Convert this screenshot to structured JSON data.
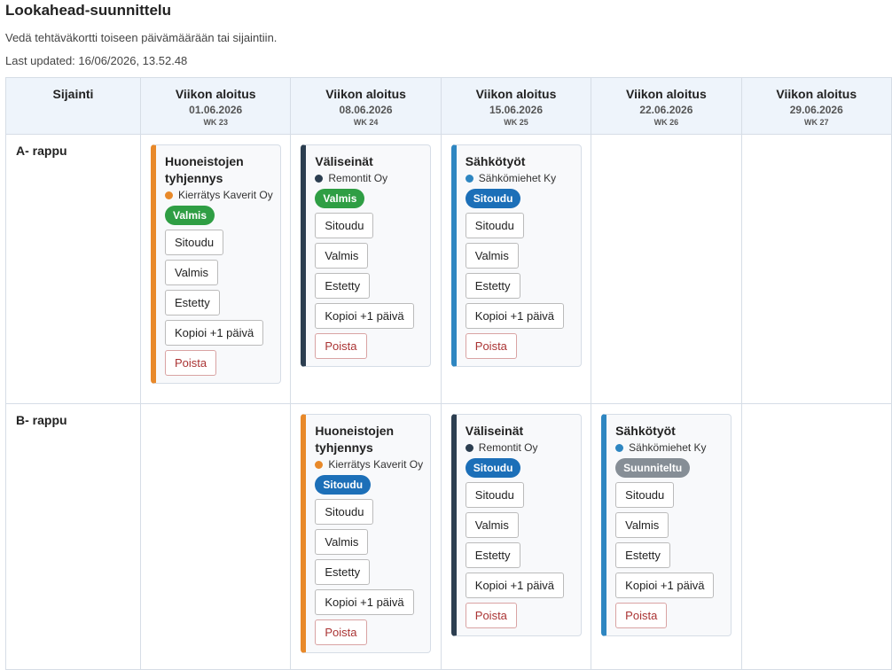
{
  "header": {
    "title": "Lookahead-suunnittelu",
    "subtitle": "Vedä tehtäväkortti toiseen päivämäärään tai sijaintiin.",
    "last_updated": "Last updated: 16/06/2026, 13.52.48"
  },
  "actions": [
    "Sitoudu",
    "Valmis",
    "Estetty",
    "Kopioi +1 päivä",
    "Poista"
  ],
  "table": {
    "corner": "Sijainti",
    "columns": [
      {
        "label": "Viikon aloitus",
        "date": "01.06.2026",
        "week": "WK 23"
      },
      {
        "label": "Viikon aloitus",
        "date": "08.06.2026",
        "week": "WK 24"
      },
      {
        "label": "Viikon aloitus",
        "date": "15.06.2026",
        "week": "WK 25"
      },
      {
        "label": "Viikon aloitus",
        "date": "22.06.2026",
        "week": "WK 26"
      },
      {
        "label": "Viikon aloitus",
        "date": "29.06.2026",
        "week": "WK 27"
      }
    ],
    "rows": [
      {
        "label": "A- rappu",
        "cells": [
          {
            "title": "Huoneistojen tyhjennys",
            "company": "Kierrätys Kaverit Oy",
            "status": "Valmis",
            "color": "#e8892a",
            "status_color": "#2f9e44"
          },
          {
            "title": "Väliseinät",
            "company": "Remontit Oy",
            "status": "Valmis",
            "color": "#2c3e50",
            "status_color": "#2f9e44"
          },
          {
            "title": "Sähkötyöt",
            "company": "Sähkömiehet Ky",
            "status": "Sitoudu",
            "color": "#2e86c1",
            "status_color": "#1c6fb8"
          },
          null,
          null
        ]
      },
      {
        "label": "B- rappu",
        "cells": [
          null,
          {
            "title": "Huoneistojen tyhjennys",
            "company": "Kierrätys Kaverit Oy",
            "status": "Sitoudu",
            "color": "#e8892a",
            "status_color": "#1c6fb8"
          },
          {
            "title": "Väliseinät",
            "company": "Remontit Oy",
            "status": "Sitoudu",
            "color": "#2c3e50",
            "status_color": "#1c6fb8"
          },
          {
            "title": "Sähkötyöt",
            "company": "Sähkömiehet Ky",
            "status": "Suunniteltu",
            "color": "#2e86c1",
            "status_color": "#868e96"
          },
          null
        ]
      }
    ]
  }
}
